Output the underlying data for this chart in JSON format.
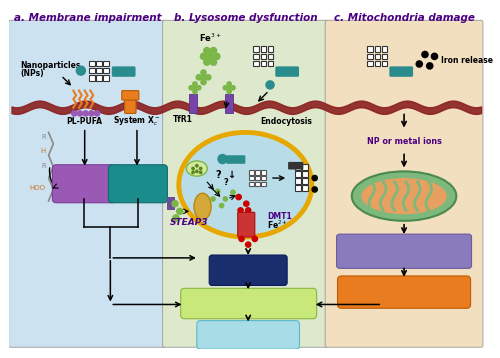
{
  "title_a": "a. Membrane impairment",
  "title_b": "b. Lysosome dysfunction",
  "title_c": "c. Mitochondria damage",
  "bg_a": "#cde2f0",
  "bg_b": "#dde8cc",
  "bg_c": "#f2dfc0",
  "membrane_color": "#8B2020",
  "box_purple_color": "#9b59b6",
  "box_teal_color": "#1a8c8c",
  "box_navy_color": "#1a2e6e",
  "box_green_color": "#c8e87a",
  "box_cyan_color": "#a8dde8",
  "box_orange_color": "#e87c1e",
  "box_lavender_color": "#8a7bbd",
  "title_color": "#4b0082",
  "teal_dot_color": "#2a8c8c",
  "red_dot_color": "#cc0000",
  "fe_green_color": "#7ab648",
  "lysosome_outer": "#e6a800",
  "lysosome_inner": "#b8dce8",
  "mitochondria_outer": "#7db87d",
  "mitochondria_inner": "#e8a060",
  "purple_receptor": "#7744aa",
  "orange_channel": "#e87c1e"
}
